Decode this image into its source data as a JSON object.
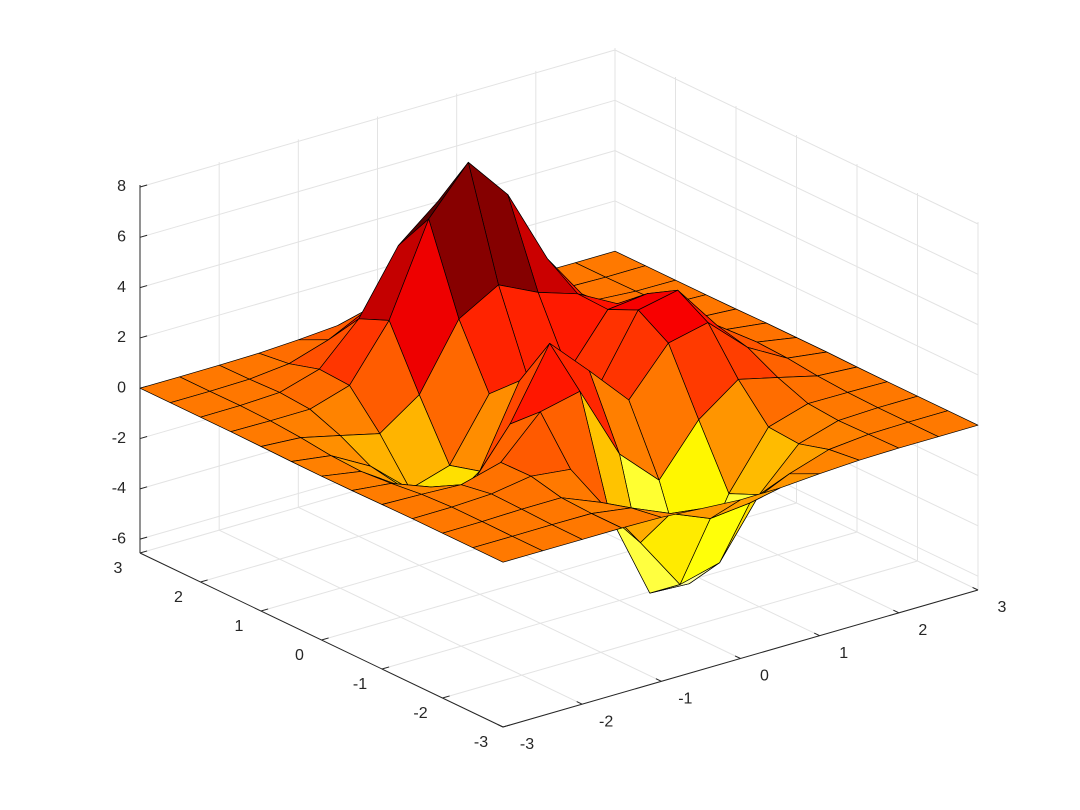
{
  "chart_data": {
    "type": "surface",
    "x": [
      -3,
      -2.5,
      -2,
      -1.5,
      -1,
      -0.5,
      0,
      0.5,
      1,
      1.5,
      2,
      2.5,
      3
    ],
    "y": [
      -3,
      -2.5,
      -2,
      -1.5,
      -1,
      -0.5,
      0,
      0.5,
      1,
      1.5,
      2,
      2.5,
      3
    ],
    "z": [
      [
        0,
        0,
        0,
        0,
        -0.03,
        -0.14,
        -0.24,
        -0.22,
        -0.11,
        -0.03,
        0,
        0,
        0
      ],
      [
        0,
        0,
        0.01,
        0,
        -0.23,
        -0.91,
        -1.56,
        -1.4,
        -0.69,
        -0.18,
        -0.03,
        0,
        0
      ],
      [
        0,
        0.01,
        0.05,
        0.05,
        -0.59,
        -2.64,
        -4.76,
        -4.35,
        -2.1,
        -0.53,
        -0.06,
        0,
        0
      ],
      [
        0,
        0.01,
        0.08,
        0.33,
        0.15,
        -2.18,
        -5.68,
        -5.76,
        -2.63,
        -0.44,
        0.04,
        0.03,
        0
      ],
      [
        -0.01,
        -0.06,
        -0.13,
        0.3,
        1.86,
        2.22,
        -0.73,
        -2.22,
        -0.27,
        0.88,
        0.5,
        0.11,
        0.01
      ],
      [
        -0.03,
        -0.2,
        -0.8,
        -1.21,
        0.8,
        3.55,
        2.0,
        0.39,
        2.2,
        2.56,
        1.12,
        0.24,
        0.03
      ],
      [
        -0.04,
        -0.3,
        -1.33,
        -2.77,
        -1.65,
        1.48,
        0.98,
        0.37,
        2.94,
        3.27,
        1.41,
        0.3,
        0.03
      ],
      [
        -0.03,
        -0.25,
        -1.12,
        -2.49,
        -2.0,
        0.39,
        0.46,
        0.38,
        2.38,
        2.56,
        1.09,
        0.23,
        0.03
      ],
      [
        -0.01,
        -0.11,
        -0.48,
        -0.86,
        0.23,
        2.79,
        3.69,
        2.94,
        2.43,
        1.58,
        0.58,
        0.11,
        0.01
      ],
      [
        0,
        -0.02,
        -0.01,
        0.48,
        2.61,
        6.19,
        7.99,
        6.25,
        3.25,
        1.18,
        0.29,
        0.05,
        0
      ],
      [
        0,
        0.01,
        0.08,
        0.55,
        2.1,
        4.56,
        5.86,
        4.57,
        2.21,
        0.68,
        0.13,
        0.02,
        0
      ],
      [
        0,
        0,
        0.03,
        0.19,
        0.69,
        1.46,
        1.88,
        1.46,
        0.7,
        0.2,
        0.04,
        0,
        0
      ],
      [
        0,
        0,
        0.01,
        0.03,
        0.11,
        0.23,
        0.3,
        0.23,
        0.11,
        0.03,
        0.01,
        0,
        0
      ]
    ],
    "xlim": [
      -3,
      3
    ],
    "ylim": [
      -3,
      3
    ],
    "zlim": [
      -6.55,
      8.08
    ],
    "xticks": [
      -3,
      -2,
      -1,
      0,
      1,
      2,
      3
    ],
    "yticks": [
      -3,
      -2,
      -1,
      0,
      1,
      2,
      3
    ],
    "zticks": [
      -6,
      -4,
      -2,
      0,
      2,
      4,
      6,
      8
    ],
    "grid": true,
    "colormap": "hot",
    "colormap_reversed": true,
    "edge_color": "#000000"
  }
}
